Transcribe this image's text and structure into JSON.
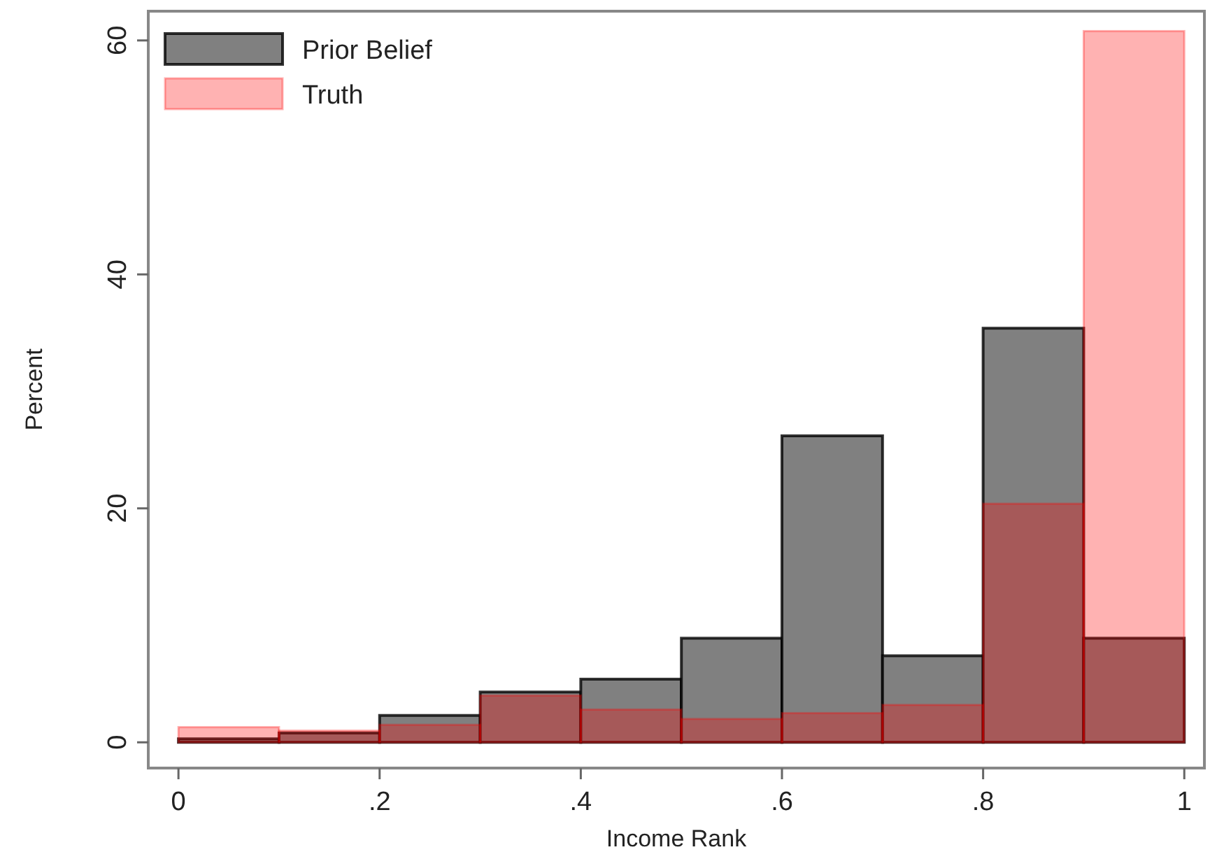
{
  "chart_data": {
    "type": "histogram",
    "xlabel": "Income Rank",
    "ylabel": "Percent",
    "bins": [
      0,
      0.1,
      0.2,
      0.3,
      0.4,
      0.5,
      0.6,
      0.7,
      0.8,
      0.9,
      1
    ],
    "series": [
      {
        "name": "Prior Belief",
        "color": "#808080",
        "values": [
          0.3,
          0.8,
          2.3,
          4.3,
          5.4,
          8.9,
          26.2,
          7.4,
          35.4,
          8.9
        ]
      },
      {
        "name": "Truth",
        "color": "#ff0000",
        "values": [
          1.3,
          1.0,
          1.5,
          4.0,
          2.8,
          2.0,
          2.5,
          3.2,
          20.4,
          60.8
        ]
      }
    ],
    "xlim": [
      -0.03,
      1.02
    ],
    "xticks": [
      0,
      {
        "value": 0.2,
        "label": ".2"
      },
      {
        "value": 0.4,
        "label": ".4"
      },
      {
        "value": 0.6,
        "label": ".6"
      },
      {
        "value": 0.8,
        "label": ".8"
      },
      1
    ],
    "ylim": [
      -2.2,
      62.5
    ],
    "yticks": [
      0,
      20,
      40,
      60
    ],
    "grid": false,
    "legend": "top left"
  }
}
